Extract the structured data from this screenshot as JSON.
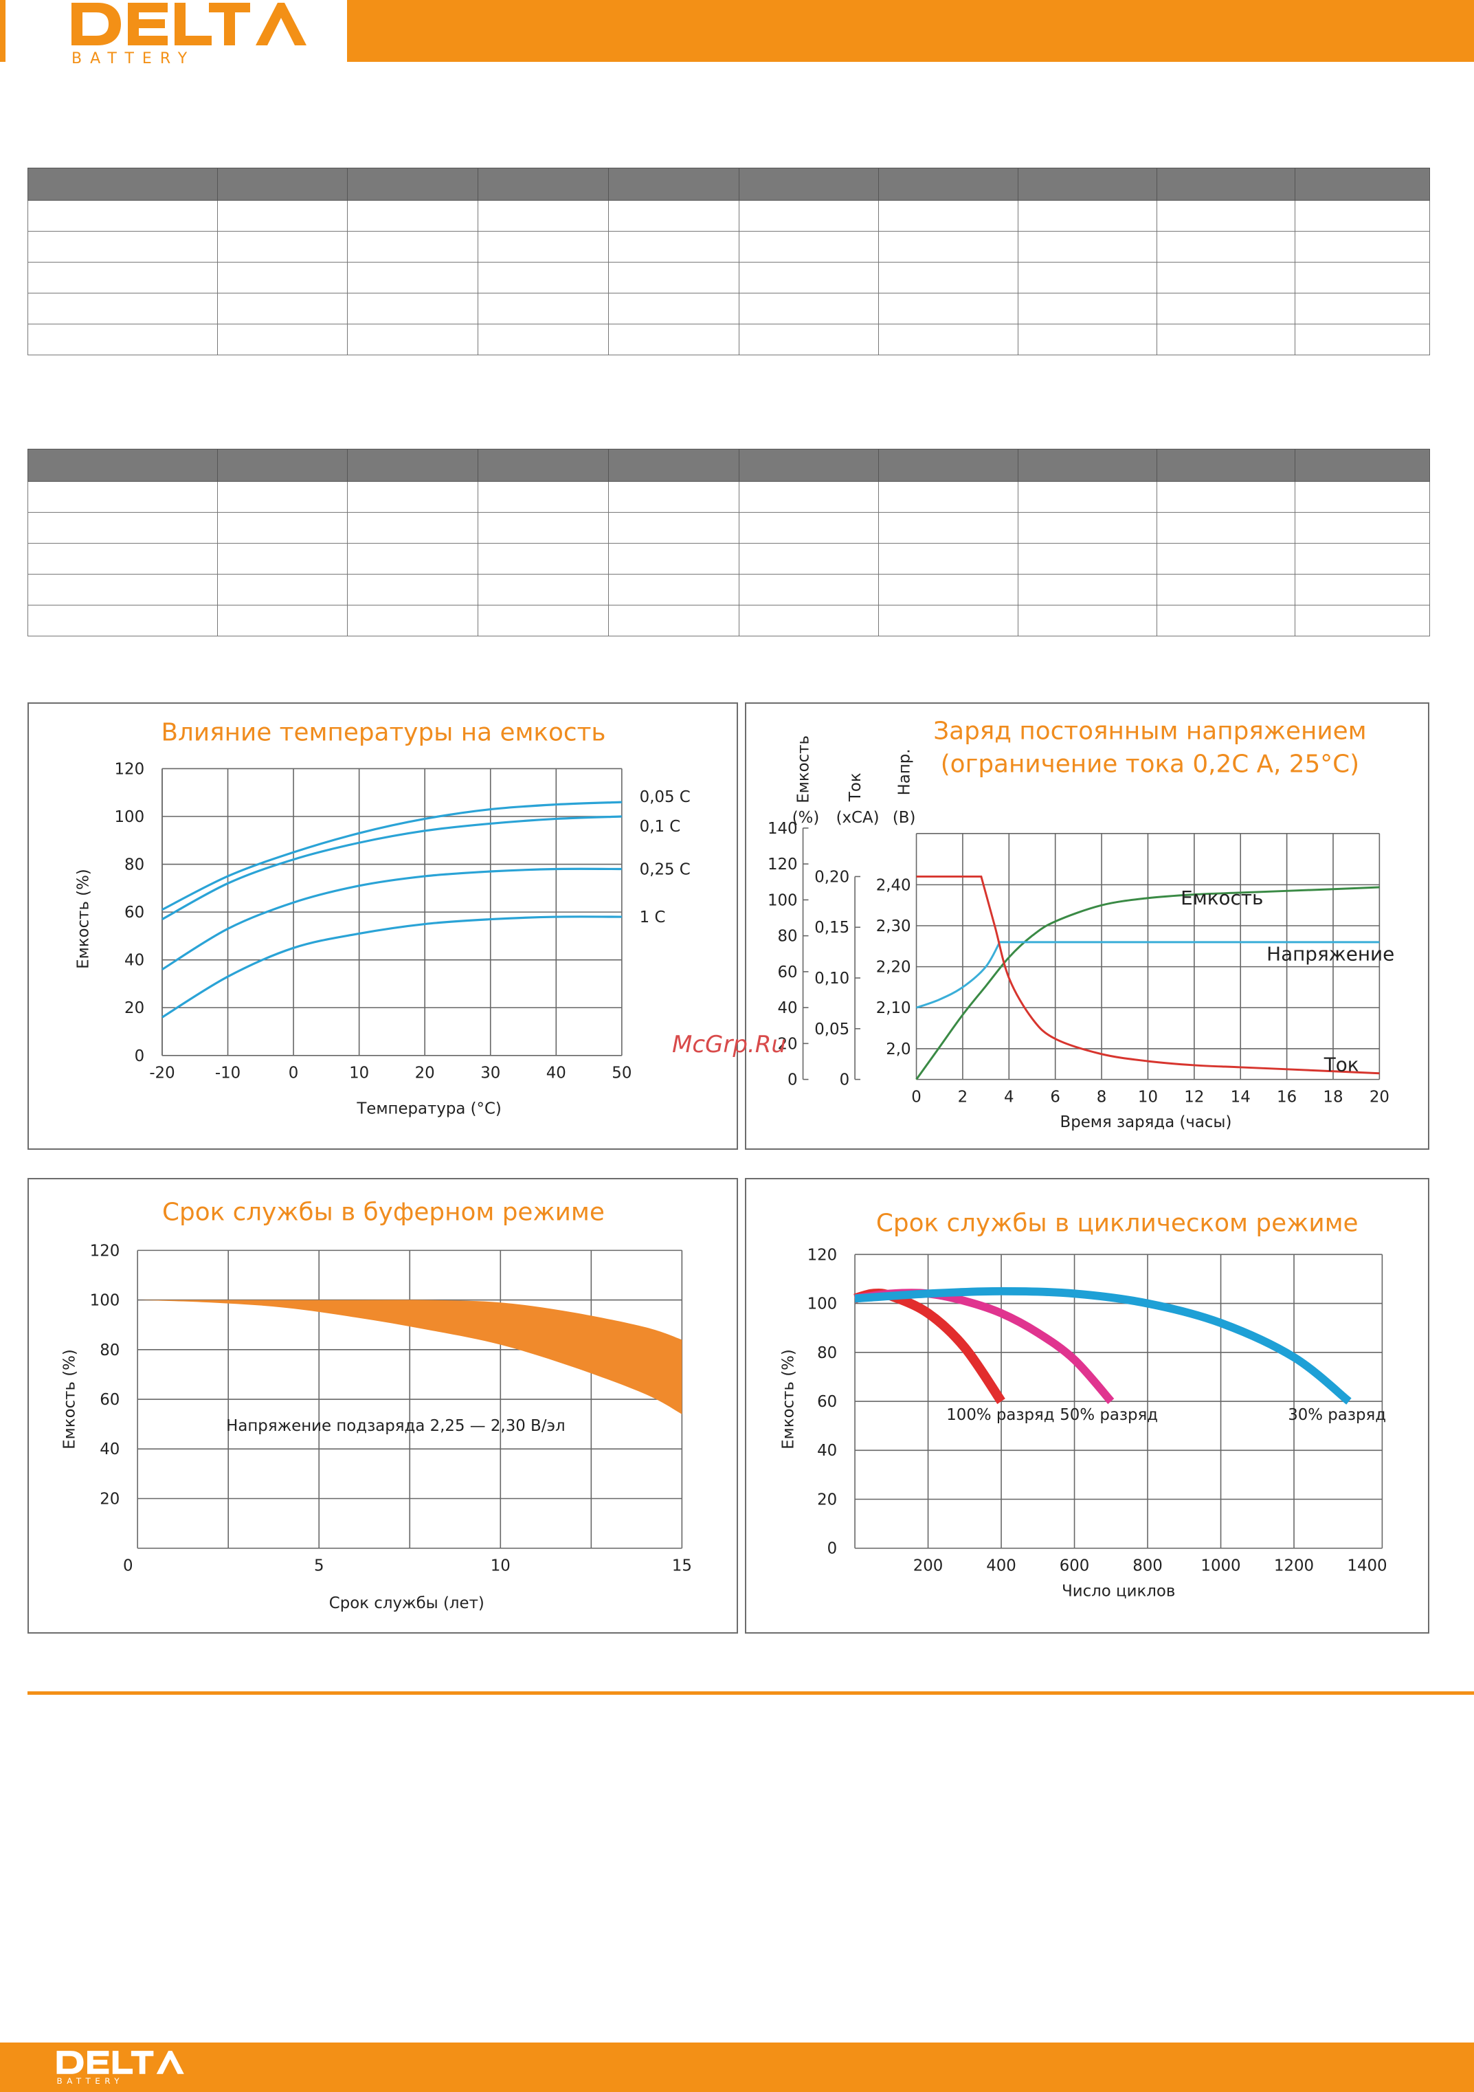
{
  "brand": {
    "name": "DELTA",
    "sub": "BATTERY"
  },
  "watermark": "McGrp.Ru",
  "charts": {
    "temperature": {
      "title": "Влияние температуры на емкость",
      "xlabel": "Температура (°С)",
      "ylabel": "Емкость (%)"
    },
    "charging": {
      "title_line1": "Заряд постоянным напряжением",
      "title_line2": "(ограничение тока 0,2С А, 25°С)",
      "xlabel": "Время заряда (часы)",
      "ylabel_capacity": "Емкость",
      "ylabel_capacity_unit": "(%)",
      "ylabel_current": "Ток",
      "ylabel_current_unit": "(xCA)",
      "ylabel_voltage": "Напр.",
      "ylabel_voltage_unit": "(В)"
    },
    "float_life": {
      "title": "Срок службы в буферном режиме",
      "xlabel": "Срок службы (лет)",
      "ylabel": "Емкость (%)",
      "annotation": "Напряжение подзаряда 2,25 — 2,30 В/эл"
    },
    "cycle_life": {
      "title": "Срок службы в циклическом режиме",
      "xlabel": "Число циклов",
      "ylabel": "Емкость (%)"
    }
  },
  "chart_data": [
    {
      "type": "line",
      "title": "Влияние температуры на емкость",
      "xlabel": "Температура (°С)",
      "ylabel": "Емкость (%)",
      "xlim": [
        -20,
        50
      ],
      "ylim": [
        0,
        120
      ],
      "x_ticks": [
        "-20",
        "-10",
        "0",
        "10",
        "20",
        "30",
        "40",
        "50"
      ],
      "y_ticks": [
        "0",
        "20",
        "40",
        "60",
        "80",
        "100",
        "120"
      ],
      "grid": true,
      "x": [
        -20,
        -10,
        0,
        10,
        20,
        30,
        40,
        50
      ],
      "series": [
        {
          "name": "0,05 С",
          "color": "#2aa3d6",
          "values": [
            61,
            75,
            85,
            93,
            99,
            103,
            105,
            106
          ]
        },
        {
          "name": "0,1 С",
          "color": "#2aa3d6",
          "values": [
            57,
            72,
            82,
            89,
            94,
            97,
            99,
            100
          ]
        },
        {
          "name": "0,25 С",
          "color": "#2aa3d6",
          "values": [
            36,
            53,
            64,
            71,
            75,
            77,
            78,
            78
          ]
        },
        {
          "name": "1 С",
          "color": "#2aa3d6",
          "values": [
            16,
            33,
            45,
            51,
            55,
            57,
            58,
            58
          ]
        }
      ]
    },
    {
      "type": "line",
      "title": "Заряд постоянным напряжением (ограничение тока 0,2С А, 25°С)",
      "xlabel": "Время заряда (часы)",
      "xlim": [
        0,
        20
      ],
      "x_ticks": [
        "0",
        "2",
        "4",
        "6",
        "8",
        "10",
        "12",
        "14",
        "16",
        "18",
        "20"
      ],
      "y_ticks_capacity": [
        "0",
        "20",
        "40",
        "60",
        "80",
        "100",
        "120",
        "140"
      ],
      "y_ticks_current": [
        "0",
        "0,05",
        "0,10",
        "0,15",
        "0,20"
      ],
      "y_ticks_voltage": [
        "2,0",
        "2,10",
        "2,20",
        "2,30",
        "2,40"
      ],
      "grid": true,
      "series": [
        {
          "name": "Емкость",
          "axis": "capacity (%)",
          "color": "#3a8a45",
          "x": [
            0,
            1,
            2,
            3,
            4,
            5,
            6,
            8,
            10,
            12,
            14,
            16,
            18,
            20
          ],
          "values": [
            0,
            18,
            36,
            52,
            68,
            80,
            88,
            97,
            101,
            103,
            104,
            105,
            106,
            107
          ]
        },
        {
          "name": "Напряжение",
          "axis": "voltage (V)",
          "color": "#3aaed8",
          "x": [
            0,
            1,
            2,
            3,
            3.6,
            4,
            8,
            12,
            16,
            20
          ],
          "values": [
            2.1,
            2.12,
            2.15,
            2.2,
            2.26,
            2.26,
            2.26,
            2.26,
            2.26,
            2.26
          ]
        },
        {
          "name": "Ток",
          "axis": "current (xCA)",
          "color": "#d7352e",
          "x": [
            0,
            1,
            2,
            2.8,
            3.4,
            4,
            5,
            6,
            8,
            10,
            12,
            14,
            16,
            18,
            20
          ],
          "values": [
            0.2,
            0.2,
            0.2,
            0.2,
            0.15,
            0.1,
            0.06,
            0.04,
            0.025,
            0.018,
            0.014,
            0.012,
            0.01,
            0.008,
            0.006
          ]
        }
      ]
    },
    {
      "type": "area",
      "title": "Срок службы в буферном режиме",
      "xlabel": "Срок службы (лет)",
      "ylabel": "Емкость (%)",
      "xlim": [
        0,
        15
      ],
      "ylim": [
        0,
        120
      ],
      "x_ticks": [
        "0",
        "5",
        "10",
        "15"
      ],
      "y_ticks": [
        "20",
        "40",
        "60",
        "80",
        "100",
        "120"
      ],
      "grid": true,
      "x": [
        0,
        2,
        4,
        6,
        8,
        10,
        12,
        14,
        15
      ],
      "series": [
        {
          "name": "upper",
          "color": "#f08a2c",
          "values": [
            100,
            100,
            100,
            100,
            100,
            99,
            95,
            89,
            84
          ]
        },
        {
          "name": "lower",
          "color": "#f08a2c",
          "values": [
            100,
            99,
            97,
            93,
            88,
            82,
            73,
            62,
            54
          ]
        }
      ]
    },
    {
      "type": "line",
      "title": "Срок службы в циклическом режиме",
      "xlabel": "Число циклов",
      "ylabel": "Емкость (%)",
      "xlim": [
        0,
        1400
      ],
      "ylim": [
        0,
        120
      ],
      "x_ticks": [
        "200",
        "400",
        "600",
        "800",
        "1000",
        "1200",
        "1400"
      ],
      "y_ticks": [
        "0",
        "20",
        "40",
        "60",
        "80",
        "100",
        "120"
      ],
      "grid": true,
      "series": [
        {
          "name": "100% разряд",
          "color": "#e22d2d",
          "x": [
            0,
            50,
            100,
            200,
            300,
            400
          ],
          "values": [
            102,
            104,
            103,
            96,
            82,
            60
          ]
        },
        {
          "name": "50% разряд",
          "color": "#e0348f",
          "x": [
            0,
            100,
            200,
            300,
            400,
            500,
            600,
            700
          ],
          "values": [
            102,
            104,
            104,
            101,
            96,
            88,
            77,
            60
          ]
        },
        {
          "name": "30% разряд",
          "color": "#1ea0d6",
          "x": [
            0,
            200,
            400,
            600,
            800,
            1000,
            1200,
            1350
          ],
          "values": [
            102,
            104,
            105,
            104,
            100,
            92,
            78,
            60
          ]
        }
      ]
    }
  ]
}
